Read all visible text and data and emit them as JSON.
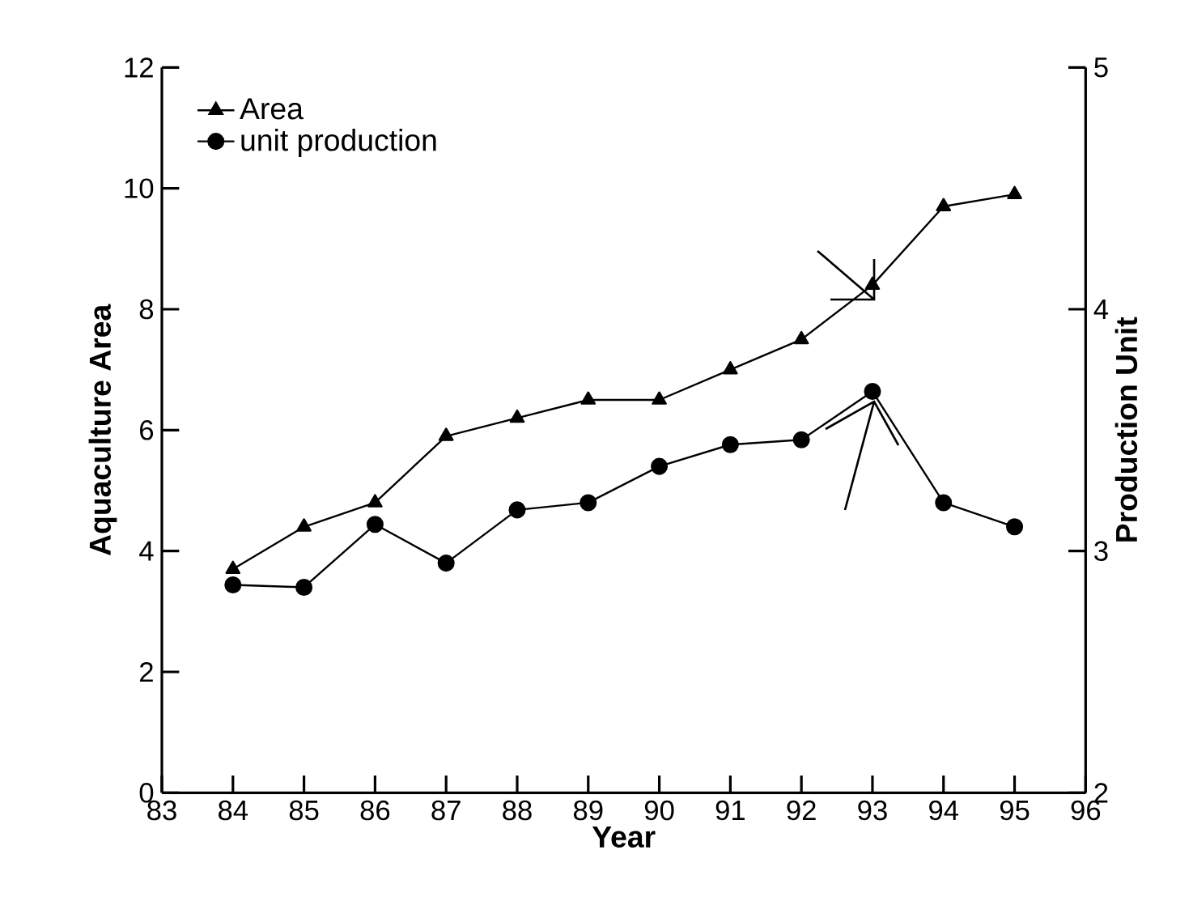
{
  "chart_data": {
    "type": "line",
    "xlabel": "Year",
    "ylabel": "Aquaculture Area",
    "y2label": "Production Unit",
    "x": [
      84,
      85,
      86,
      87,
      88,
      89,
      90,
      91,
      92,
      93,
      94,
      95
    ],
    "series": [
      {
        "name": "Area",
        "color": "#000000",
        "marker": "triangle",
        "values": [
          3.7,
          4.4,
          4.8,
          5.9,
          6.2,
          6.5,
          6.5,
          7.0,
          7.5,
          8.4,
          9.7,
          9.9
        ]
      },
      {
        "name": "unit production",
        "color": "#000000",
        "marker": "circle",
        "axis": "y2",
        "values": [
          2.86,
          2.85,
          3.11,
          2.95,
          3.17,
          3.2,
          3.35,
          3.44,
          3.46,
          3.66,
          3.2,
          3.1
        ]
      }
    ],
    "xlim": [
      83,
      96
    ],
    "xticks": [
      83,
      84,
      85,
      86,
      87,
      88,
      89,
      90,
      91,
      92,
      93,
      94,
      95,
      96
    ],
    "ylim": [
      0,
      12
    ],
    "yticks": [
      0,
      2,
      4,
      6,
      8,
      10,
      12
    ],
    "y2lim": [
      2,
      5
    ],
    "y2ticks": [
      2,
      3,
      4,
      5
    ],
    "legend": "top left",
    "line_style": "solid"
  }
}
